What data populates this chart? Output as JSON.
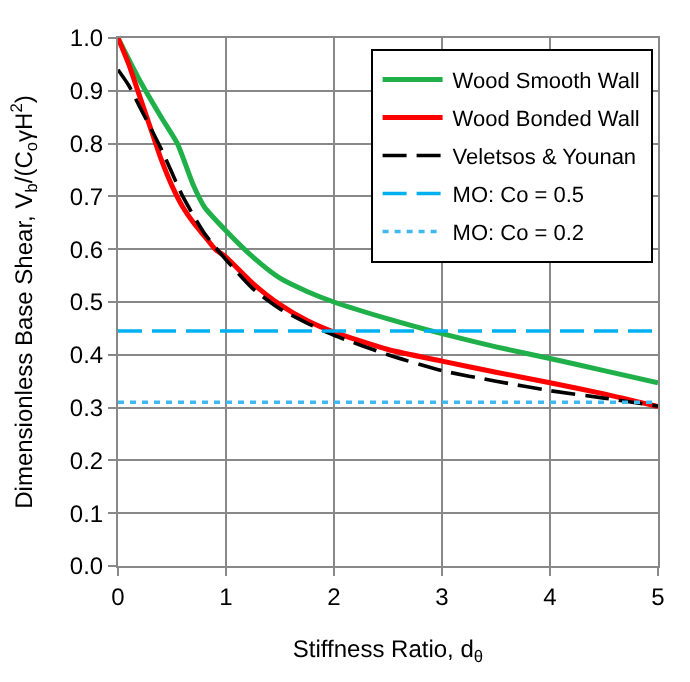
{
  "chart_data": {
    "type": "line",
    "xlabel": "Stiffness Ratio, d$_{θ}$",
    "ylabel": "Dimensionless Base Shear, V$_{b}$/(C$_{o}$γH$^{2}$)",
    "xlim": [
      0,
      5
    ],
    "xticks": [
      0,
      1,
      2,
      3,
      4,
      5
    ],
    "ylim": [
      0,
      1
    ],
    "yticks": [
      {
        "value": 0,
        "label": "0.0"
      },
      0.1,
      0.2,
      0.3,
      0.4,
      0.5,
      0.6,
      0.7,
      0.8,
      0.9,
      {
        "value": 1,
        "label": "1.0"
      }
    ],
    "grid": true,
    "legend": "top right",
    "marker": "none",
    "series": [
      {
        "name": "Wood Smooth Wall",
        "color": "#1fb04a",
        "line_style": "solid",
        "x": [
          0,
          0.2,
          0.4,
          0.55,
          0.7,
          0.8,
          1,
          1.25,
          1.5,
          1.75,
          2,
          2.5,
          3,
          3.5,
          4,
          4.5,
          5
        ],
        "values": [
          1.0,
          0.92,
          0.85,
          0.8,
          0.72,
          0.68,
          0.635,
          0.585,
          0.545,
          0.52,
          0.5,
          0.468,
          0.44,
          0.415,
          0.393,
          0.37,
          0.347
        ]
      },
      {
        "name": "Wood Bonded Wall",
        "color": "#ff0000",
        "line_style": "solid",
        "x": [
          0,
          0.1,
          0.2,
          0.3,
          0.4,
          0.5,
          0.6,
          0.7,
          0.8,
          0.9,
          1,
          1.25,
          1.5,
          1.75,
          2,
          2.5,
          3,
          3.5,
          4,
          4.5,
          5
        ],
        "values": [
          1.0,
          0.95,
          0.89,
          0.83,
          0.77,
          0.72,
          0.68,
          0.65,
          0.625,
          0.6,
          0.585,
          0.535,
          0.495,
          0.465,
          0.443,
          0.41,
          0.388,
          0.367,
          0.347,
          0.326,
          0.302
        ]
      },
      {
        "name": "Veletsos & Younan",
        "color": "#000000",
        "line_style": "dashed",
        "x": [
          0,
          0.1,
          0.2,
          0.4,
          0.6,
          0.8,
          1,
          1.25,
          1.5,
          1.75,
          2,
          2.5,
          3,
          3.5,
          4,
          4.5,
          5
        ],
        "values": [
          0.94,
          0.91,
          0.87,
          0.79,
          0.7,
          0.63,
          0.58,
          0.525,
          0.487,
          0.46,
          0.437,
          0.4,
          0.37,
          0.35,
          0.332,
          0.318,
          0.303
        ]
      },
      {
        "name": "MO: Co = 0.5",
        "color": "#00b0f0",
        "line_style": "dashed",
        "x": [
          0,
          5
        ],
        "values": [
          0.445,
          0.445
        ]
      },
      {
        "name": "MO: Co = 0.2",
        "color": "#40b8f0",
        "line_style": "dotted",
        "x": [
          0,
          5
        ],
        "values": [
          0.31,
          0.31
        ]
      }
    ]
  }
}
